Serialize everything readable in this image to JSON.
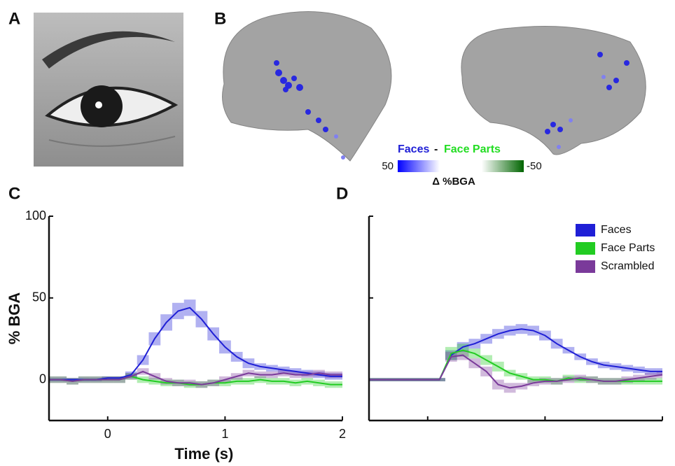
{
  "panels": {
    "a": "A",
    "b": "B",
    "c": "C",
    "d": "D"
  },
  "brain_legend": {
    "faces": "Faces",
    "separator": "-",
    "face_parts": "Face Parts",
    "clim": [
      50,
      -50
    ],
    "title": "Δ %BGA"
  },
  "chart_data": [
    {
      "type": "line",
      "ylabel": "% BGA",
      "xlabel": "Time (s)",
      "x": [
        -0.5,
        -0.4,
        -0.3,
        -0.2,
        -0.1,
        0,
        0.1,
        0.2,
        0.3,
        0.4,
        0.5,
        0.6,
        0.7,
        0.8,
        0.9,
        1,
        1.1,
        1.2,
        1.3,
        1.4,
        1.5,
        1.6,
        1.7,
        1.8,
        1.9,
        2
      ],
      "xlim": [
        -0.5,
        2
      ],
      "xticks": [
        0,
        1,
        2
      ],
      "ylim": [
        -25,
        100
      ],
      "yticks": [
        0,
        50,
        100
      ],
      "series": [
        {
          "name": "Faces",
          "color": "#1f1fd6",
          "values": [
            0,
            0,
            0,
            0,
            0,
            1,
            1,
            3,
            12,
            25,
            35,
            42,
            44,
            37,
            28,
            20,
            14,
            10,
            8,
            7,
            6,
            5,
            4,
            3,
            2,
            2
          ],
          "errors": [
            1,
            1,
            1,
            1,
            1,
            1,
            1,
            2,
            3,
            4,
            5,
            5,
            5,
            5,
            4,
            4,
            3,
            3,
            2,
            2,
            2,
            2,
            2,
            2,
            2,
            2
          ]
        },
        {
          "name": "Face Parts",
          "color": "#22cc22",
          "values": [
            0,
            0,
            -1,
            0,
            0,
            0,
            0,
            2,
            0,
            -1,
            -2,
            -2,
            -3,
            -3,
            -2,
            -2,
            -1,
            -1,
            0,
            -1,
            -1,
            -2,
            -1,
            -2,
            -3,
            -3
          ],
          "errors": [
            2,
            2,
            2,
            2,
            2,
            2,
            2,
            2,
            2,
            2,
            2,
            2,
            2,
            2,
            2,
            2,
            2,
            2,
            2,
            2,
            2,
            2,
            2,
            2,
            2,
            2
          ]
        },
        {
          "name": "Scrambled",
          "color": "#7a3a9a",
          "values": [
            0,
            0,
            -1,
            0,
            0,
            0,
            0,
            2,
            5,
            2,
            -1,
            -2,
            -2,
            -3,
            -2,
            0,
            2,
            4,
            3,
            3,
            4,
            3,
            3,
            4,
            3,
            3
          ],
          "errors": [
            2,
            2,
            2,
            2,
            2,
            2,
            2,
            2,
            2,
            2,
            2,
            2,
            2,
            2,
            2,
            2,
            2,
            2,
            2,
            2,
            2,
            2,
            2,
            2,
            2,
            2
          ]
        }
      ]
    },
    {
      "type": "line",
      "xtick_labels": false,
      "ytick_labels": false,
      "legend": "top-right",
      "x": [
        -0.5,
        -0.4,
        -0.3,
        -0.2,
        -0.1,
        0,
        0.1,
        0.2,
        0.3,
        0.4,
        0.5,
        0.6,
        0.7,
        0.8,
        0.9,
        1,
        1.1,
        1.2,
        1.3,
        1.4,
        1.5,
        1.6,
        1.7,
        1.8,
        1.9,
        2
      ],
      "xlim": [
        -0.5,
        2
      ],
      "xticks": [
        0,
        1,
        2
      ],
      "ylim": [
        -25,
        100
      ],
      "yticks": [
        0,
        50,
        100
      ],
      "series": [
        {
          "name": "Faces",
          "color": "#1f1fd6",
          "values": [
            0,
            0,
            0,
            0,
            0,
            0,
            0,
            15,
            20,
            22,
            25,
            28,
            30,
            31,
            30,
            27,
            22,
            18,
            14,
            11,
            9,
            8,
            7,
            6,
            5,
            5
          ],
          "errors": [
            1,
            1,
            1,
            1,
            1,
            1,
            1,
            3,
            3,
            3,
            3,
            3,
            3,
            3,
            3,
            3,
            3,
            2,
            2,
            2,
            2,
            2,
            2,
            2,
            2,
            2
          ]
        },
        {
          "name": "Face Parts",
          "color": "#22cc22",
          "values": [
            0,
            0,
            0,
            0,
            0,
            0,
            0,
            16,
            18,
            16,
            12,
            8,
            4,
            2,
            0,
            0,
            -1,
            1,
            0,
            0,
            -1,
            -1,
            -1,
            -1,
            -1,
            -1
          ],
          "errors": [
            1,
            1,
            1,
            1,
            1,
            1,
            1,
            4,
            4,
            3,
            3,
            3,
            2,
            2,
            2,
            2,
            2,
            2,
            2,
            2,
            2,
            2,
            2,
            2,
            2,
            2
          ]
        },
        {
          "name": "Scrambled",
          "color": "#7a3a9a",
          "values": [
            0,
            0,
            0,
            0,
            0,
            0,
            0,
            14,
            15,
            10,
            5,
            -3,
            -5,
            -4,
            -2,
            -1,
            -1,
            0,
            1,
            0,
            -1,
            -1,
            0,
            1,
            2,
            3
          ],
          "errors": [
            1,
            1,
            1,
            1,
            1,
            1,
            1,
            3,
            3,
            3,
            3,
            3,
            3,
            2,
            2,
            2,
            2,
            2,
            2,
            2,
            2,
            2,
            2,
            2,
            2,
            2
          ]
        }
      ]
    }
  ]
}
